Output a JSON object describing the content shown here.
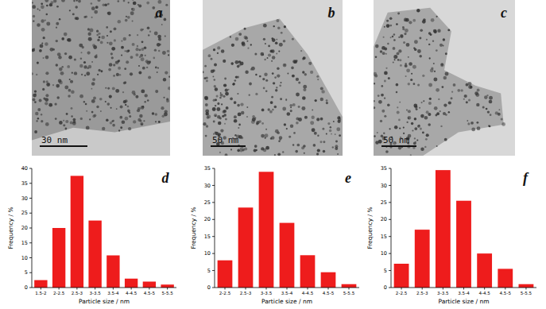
{
  "images": [
    {
      "label": "a",
      "scale_bar": "30 nm"
    },
    {
      "label": "b",
      "scale_bar": "50 nm"
    },
    {
      "label": "c",
      "scale_bar": "50 nm"
    }
  ],
  "chart_data": [
    {
      "type": "bar",
      "title": "d",
      "x_label": "Particle size / nm",
      "y_label": "Frequency / %",
      "categories": [
        "1.5-2",
        "2-2.5",
        "2.5-3",
        "3-3.5",
        "3.5-4",
        "4-4.5",
        "4.5-5",
        "5-5.5"
      ],
      "values": [
        2.5,
        20,
        37.5,
        22.5,
        10.8,
        3,
        2,
        1
      ],
      "color": "#ee1c1c",
      "ylim": [
        0,
        40
      ],
      "yticks": [
        0,
        5,
        10,
        15,
        20,
        25,
        30,
        35,
        40
      ],
      "grid": false
    },
    {
      "type": "bar",
      "title": "e",
      "x_label": "Particle size / nm",
      "y_label": "Frequency / %",
      "categories": [
        "2-2.5",
        "2.5-3",
        "3-3.5",
        "3.5-4",
        "4-4.5",
        "4.5-5",
        "5-5.5"
      ],
      "values": [
        8,
        23.5,
        34,
        19,
        9.5,
        4.5,
        1
      ],
      "color": "#ee1c1c",
      "ylim": [
        0,
        35
      ],
      "yticks": [
        0,
        5,
        10,
        15,
        20,
        25,
        30,
        35
      ],
      "grid": false
    },
    {
      "type": "bar",
      "title": "f",
      "x_label": "Particle size / nm",
      "y_label": "Frequency / %",
      "categories": [
        "2-2.5",
        "2.5-3",
        "3-3.5",
        "3.5-4",
        "4-4.5",
        "4.5-5",
        "5-5.5"
      ],
      "values": [
        7,
        17,
        34.5,
        25.5,
        10,
        5.5,
        1
      ],
      "color": "#ee1c1c",
      "ylim": [
        0,
        35
      ],
      "yticks": [
        0,
        5,
        10,
        15,
        20,
        25,
        30,
        35
      ],
      "grid": false
    }
  ]
}
